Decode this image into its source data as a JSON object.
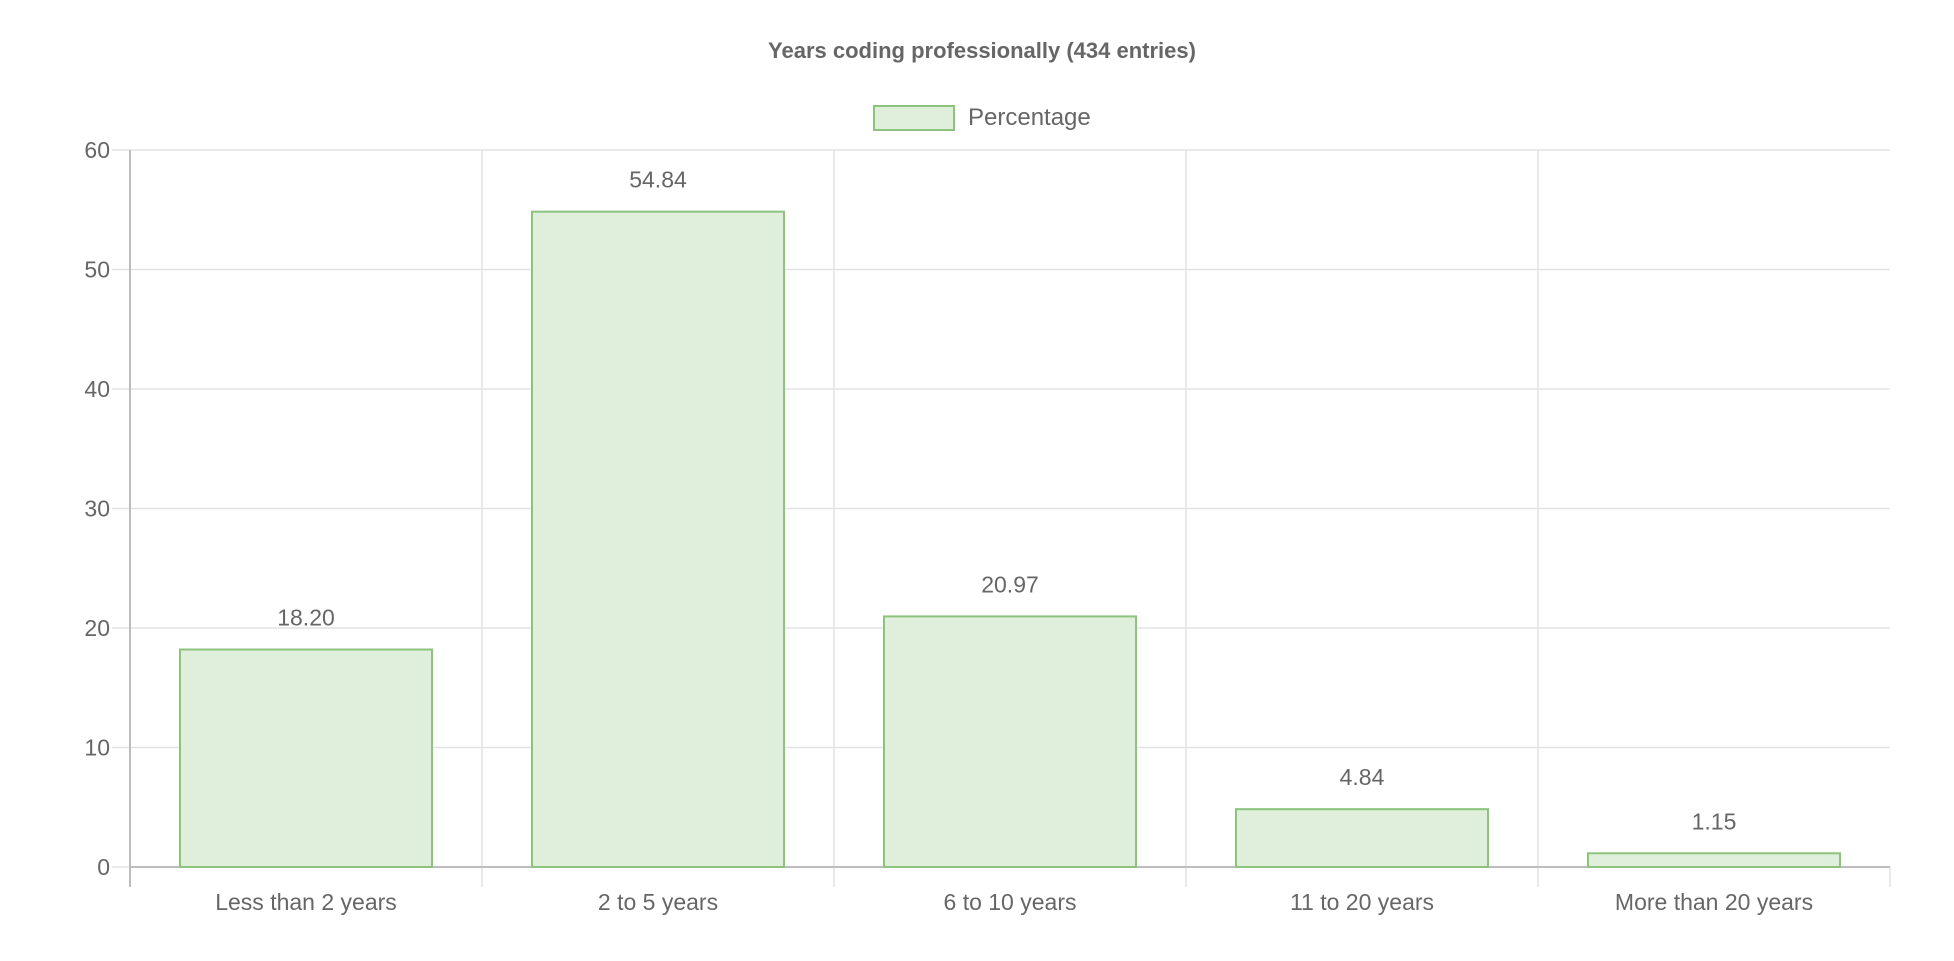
{
  "chart_data": {
    "type": "bar",
    "title": "Years coding professionally (434 entries)",
    "categories": [
      "Less than 2 years",
      "2 to 5 years",
      "6 to 10 years",
      "11 to 20 years",
      "More than 20 years"
    ],
    "series": [
      {
        "name": "Percentage",
        "values": [
          18.2,
          54.84,
          20.97,
          4.84,
          1.15
        ],
        "data_labels": [
          "18.20",
          "54.84",
          "20.97",
          "4.84",
          "1.15"
        ]
      }
    ],
    "ylim": [
      0,
      60
    ],
    "yticks": [
      0,
      10,
      20,
      30,
      40,
      50,
      60
    ],
    "xlabel": "",
    "ylabel": "",
    "grid": true,
    "legend_position": "top-center"
  },
  "colors": {
    "bar_fill": "#e0efdb",
    "bar_border": "#8cc47e",
    "grid": "#e3e3e3",
    "axis": "#bdbdbd",
    "text": "#666666",
    "title": "#666666"
  }
}
